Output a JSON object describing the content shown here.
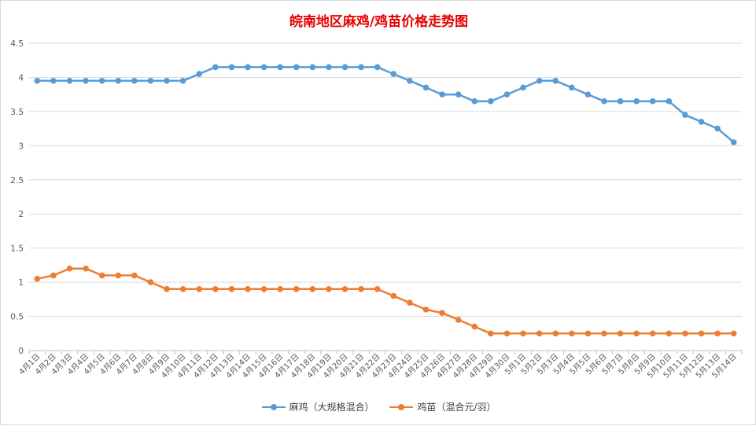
{
  "chart_data": {
    "type": "line",
    "title": "皖南地区麻鸡/鸡苗价格走势图",
    "categories": [
      "4月1日",
      "4月2日",
      "4月3日",
      "4月4日",
      "4月5日",
      "4月6日",
      "4月7日",
      "4月8日",
      "4月9日",
      "4月10日",
      "4月11日",
      "4月12日",
      "4月13日",
      "4月14日",
      "4月15日",
      "4月16日",
      "4月17日",
      "4月18日",
      "4月19日",
      "4月20日",
      "4月21日",
      "4月22日",
      "4月23日",
      "4月24日",
      "4月25日",
      "4月26日",
      "4月27日",
      "4月28日",
      "4月29日",
      "4月30日",
      "5月1日",
      "5月2日",
      "5月3日",
      "5月4日",
      "5月5日",
      "5月6日",
      "5月7日",
      "5月8日",
      "5月9日",
      "5月10日",
      "5月11日",
      "5月12日",
      "5月13日",
      "5月14日"
    ],
    "y_ticks": [
      "0",
      "0.5",
      "1",
      "1.5",
      "2",
      "2.5",
      "3",
      "3.5",
      "4",
      "4.5"
    ],
    "ylim": [
      0,
      4.5
    ],
    "grid": true,
    "legend_position": "bottom",
    "series": [
      {
        "name": "麻鸡（大规格混合）",
        "color": "#5b9bd5",
        "values": [
          3.95,
          3.95,
          3.95,
          3.95,
          3.95,
          3.95,
          3.95,
          3.95,
          3.95,
          3.95,
          4.05,
          4.15,
          4.15,
          4.15,
          4.15,
          4.15,
          4.15,
          4.15,
          4.15,
          4.15,
          4.15,
          4.15,
          4.05,
          3.95,
          3.85,
          3.75,
          3.75,
          3.65,
          3.65,
          3.75,
          3.85,
          3.95,
          3.95,
          3.85,
          3.75,
          3.65,
          3.65,
          3.65,
          3.65,
          3.65,
          3.45,
          3.35,
          3.25,
          3.05
        ]
      },
      {
        "name": "鸡苗（混合元/羽）",
        "color": "#ed7d31",
        "values": [
          1.05,
          1.1,
          1.2,
          1.2,
          1.1,
          1.1,
          1.1,
          1.0,
          0.9,
          0.9,
          0.9,
          0.9,
          0.9,
          0.9,
          0.9,
          0.9,
          0.9,
          0.9,
          0.9,
          0.9,
          0.9,
          0.9,
          0.8,
          0.7,
          0.6,
          0.55,
          0.45,
          0.35,
          0.25,
          0.25,
          0.25,
          0.25,
          0.25,
          0.25,
          0.25,
          0.25,
          0.25,
          0.25,
          0.25,
          0.25,
          0.25,
          0.25,
          0.25,
          0.25
        ]
      }
    ]
  }
}
